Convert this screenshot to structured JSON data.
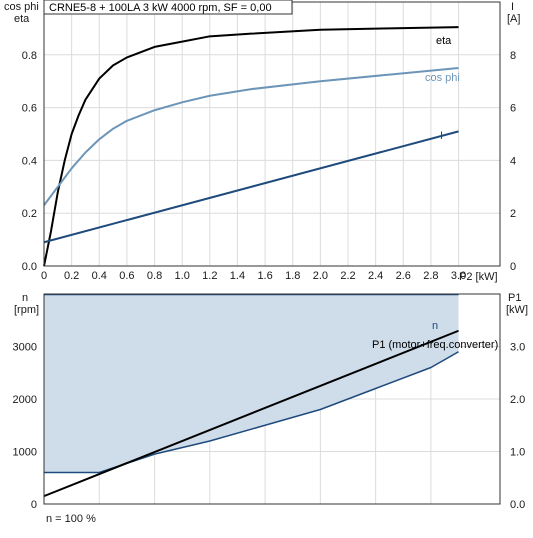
{
  "chart_data": [
    {
      "type": "line",
      "title": "CRNE5-8 + 100LA   3 kW   4000 rpm, SF = 0,00",
      "xlabel": "P2 [kW]",
      "ylabel_left_line1": "cos phi",
      "ylabel_left_line2": "eta",
      "ylabel_right_line1": "I",
      "ylabel_right_line2": "[A]",
      "xlim": [
        0,
        3.3
      ],
      "ylim_left": [
        0,
        1.0
      ],
      "ylim_right": [
        0,
        10
      ],
      "x_ticks": [
        "0",
        "0.2",
        "0.4",
        "0.6",
        "0.8",
        "1.0",
        "1.2",
        "1.4",
        "1.6",
        "1.8",
        "2.0",
        "2.2",
        "2.4",
        "2.6",
        "2.8",
        "3.0"
      ],
      "y_ticks_left": [
        "0.0",
        "0.2",
        "0.4",
        "0.6",
        "0.8"
      ],
      "y_ticks_right": [
        "0",
        "2",
        "4",
        "6",
        "8"
      ],
      "grid": true,
      "series": [
        {
          "name": "eta",
          "axis": "left",
          "color": "#000000",
          "x": [
            0,
            0.05,
            0.1,
            0.15,
            0.2,
            0.25,
            0.3,
            0.4,
            0.5,
            0.6,
            0.7,
            0.8,
            1.0,
            1.2,
            1.5,
            2.0,
            2.5,
            3.0
          ],
          "y": [
            0,
            0.13,
            0.28,
            0.4,
            0.5,
            0.57,
            0.63,
            0.71,
            0.76,
            0.79,
            0.81,
            0.83,
            0.85,
            0.87,
            0.88,
            0.895,
            0.9,
            0.905
          ]
        },
        {
          "name": "cos phi",
          "axis": "left",
          "color": "#6d95b8",
          "x": [
            0,
            0.1,
            0.2,
            0.3,
            0.4,
            0.5,
            0.6,
            0.8,
            1.0,
            1.2,
            1.5,
            2.0,
            2.5,
            3.0
          ],
          "y": [
            0.23,
            0.3,
            0.37,
            0.43,
            0.48,
            0.52,
            0.55,
            0.59,
            0.62,
            0.645,
            0.67,
            0.7,
            0.725,
            0.75
          ]
        },
        {
          "name": "I",
          "axis": "right",
          "color": "#1f4a7c",
          "x": [
            0,
            3.0
          ],
          "y": [
            0.9,
            5.1
          ]
        }
      ]
    },
    {
      "type": "area",
      "xlim": [
        0,
        3.3
      ],
      "ylabel_left_line1": "n",
      "ylabel_left_line2": "[rpm]",
      "ylabel_right_line1": "P1",
      "ylabel_right_line2": "[kW]",
      "ylim_left": [
        0,
        4000
      ],
      "ylim_right": [
        0,
        4.0
      ],
      "y_ticks_left": [
        "0",
        "1000",
        "2000",
        "3000"
      ],
      "y_ticks_right": [
        "0.0",
        "1.0",
        "2.0",
        "3.0"
      ],
      "grid": true,
      "footnote": "n = 100 %",
      "fill_color": "#cfdcea",
      "series": [
        {
          "name": "n",
          "axis": "left",
          "color": "#1f4a7c",
          "x": [
            0,
            3.0
          ],
          "y": [
            3990,
            3990
          ]
        },
        {
          "name": "",
          "role": "lower bound of shaded area",
          "axis": "right",
          "color": "#1f4a7c",
          "x": [
            0,
            0.4,
            0.8,
            1.2,
            1.6,
            2.0,
            2.4,
            2.8,
            3.0
          ],
          "y": [
            0.6,
            0.6,
            0.95,
            1.2,
            1.5,
            1.8,
            2.2,
            2.6,
            2.9
          ]
        },
        {
          "name": "P1 (motor+freq.converter)",
          "axis": "right",
          "color": "#000000",
          "x": [
            0,
            3.0
          ],
          "y": [
            0.15,
            3.3
          ]
        }
      ]
    }
  ]
}
